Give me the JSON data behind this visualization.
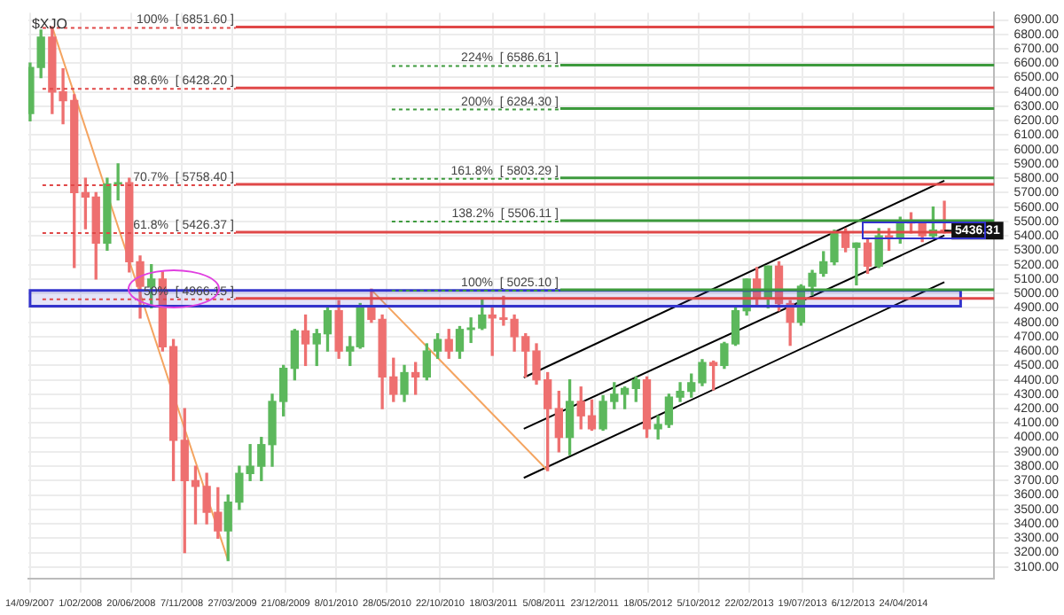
{
  "chart_data": {
    "type": "candlestick",
    "title": "$XJO",
    "x": [
      "2007-09-15",
      "2007-10-15",
      "2007-11-15",
      "2007-12-15",
      "2008-01-15",
      "2008-02-15",
      "2008-03-15",
      "2008-04-15",
      "2008-05-15",
      "2008-06-15",
      "2008-07-15",
      "2008-08-15",
      "2008-09-15",
      "2008-10-15",
      "2008-11-15",
      "2008-12-15",
      "2009-01-15",
      "2009-02-15",
      "2009-03-15",
      "2009-04-15",
      "2009-05-15",
      "2009-06-15",
      "2009-07-15",
      "2009-08-15",
      "2009-09-15",
      "2009-10-15",
      "2009-11-15",
      "2009-12-15",
      "2010-01-15",
      "2010-02-15",
      "2010-03-15",
      "2010-04-15",
      "2010-05-15",
      "2010-06-15",
      "2010-07-15",
      "2010-08-15",
      "2010-09-15",
      "2010-10-15",
      "2010-11-15",
      "2010-12-15",
      "2011-01-15",
      "2011-02-15",
      "2011-03-15",
      "2011-04-15",
      "2011-05-15",
      "2011-06-15",
      "2011-07-15",
      "2011-08-15",
      "2011-09-15",
      "2011-10-15",
      "2011-11-15",
      "2011-12-15",
      "2012-01-15",
      "2012-02-15",
      "2012-03-15",
      "2012-04-15",
      "2012-05-15",
      "2012-06-15",
      "2012-07-15",
      "2012-08-15",
      "2012-09-15",
      "2012-10-15",
      "2012-11-15",
      "2012-12-15",
      "2013-01-15",
      "2013-02-15",
      "2013-03-15",
      "2013-04-15",
      "2013-05-15",
      "2013-06-15",
      "2013-07-15",
      "2013-08-15",
      "2013-09-15",
      "2013-10-15",
      "2013-11-15",
      "2013-12-15",
      "2014-01-15",
      "2014-02-15",
      "2014-03-15",
      "2014-04-15",
      "2014-05-15",
      "2014-06-15",
      "2014-07-15",
      "2014-08-15"
    ],
    "ohlc": [
      [
        6250,
        6600,
        6200,
        6570
      ],
      [
        6570,
        6830,
        6500,
        6780
      ],
      [
        6780,
        6851.6,
        6250,
        6400
      ],
      [
        6400,
        6560,
        6180,
        6340
      ],
      [
        6340,
        6380,
        5180,
        5700
      ],
      [
        5700,
        5800,
        5450,
        5670
      ],
      [
        5670,
        5700,
        5100,
        5350
      ],
      [
        5350,
        5800,
        5300,
        5760
      ],
      [
        5760,
        5900,
        5650,
        5770
      ],
      [
        5770,
        5800,
        5150,
        5220
      ],
      [
        5220,
        5260,
        4830,
        5050
      ],
      [
        5050,
        5200,
        4900,
        5100
      ],
      [
        5100,
        5150,
        4600,
        4630
      ],
      [
        4630,
        4680,
        3700,
        3980
      ],
      [
        3980,
        4200,
        3200,
        3700
      ],
      [
        3700,
        3800,
        3400,
        3660
      ],
      [
        3660,
        3750,
        3400,
        3480
      ],
      [
        3480,
        3650,
        3300,
        3350
      ],
      [
        3350,
        3600,
        3145,
        3550
      ],
      [
        3550,
        3800,
        3500,
        3750
      ],
      [
        3750,
        3950,
        3700,
        3800
      ],
      [
        3800,
        4000,
        3700,
        3950
      ],
      [
        3950,
        4300,
        3800,
        4250
      ],
      [
        4250,
        4500,
        4150,
        4480
      ],
      [
        4480,
        4750,
        4400,
        4740
      ],
      [
        4740,
        4850,
        4500,
        4650
      ],
      [
        4650,
        4750,
        4500,
        4720
      ],
      [
        4720,
        4900,
        4600,
        4880
      ],
      [
        4880,
        4950,
        4550,
        4600
      ],
      [
        4600,
        4700,
        4500,
        4630
      ],
      [
        4630,
        4930,
        4620,
        4900
      ],
      [
        4900,
        5030,
        4800,
        4820
      ],
      [
        4820,
        4850,
        4200,
        4420
      ],
      [
        4420,
        4550,
        4250,
        4300
      ],
      [
        4300,
        4500,
        4250,
        4450
      ],
      [
        4450,
        4520,
        4300,
        4420
      ],
      [
        4420,
        4650,
        4400,
        4600
      ],
      [
        4600,
        4720,
        4550,
        4680
      ],
      [
        4680,
        4750,
        4550,
        4600
      ],
      [
        4600,
        4770,
        4550,
        4750
      ],
      [
        4750,
        4830,
        4660,
        4760
      ],
      [
        4760,
        4960,
        4750,
        4850
      ],
      [
        4850,
        4900,
        4570,
        4830
      ],
      [
        4830,
        4980,
        4780,
        4820
      ],
      [
        4820,
        4850,
        4600,
        4700
      ],
      [
        4700,
        4720,
        4420,
        4600
      ],
      [
        4600,
        4650,
        4370,
        4400
      ],
      [
        4400,
        4450,
        3770,
        4200
      ],
      [
        4200,
        4320,
        3900,
        4000
      ],
      [
        4000,
        4400,
        3880,
        4250
      ],
      [
        4250,
        4350,
        4060,
        4150
      ],
      [
        4150,
        4260,
        4050,
        4060
      ],
      [
        4060,
        4290,
        4050,
        4250
      ],
      [
        4250,
        4380,
        4200,
        4300
      ],
      [
        4300,
        4350,
        4200,
        4340
      ],
      [
        4340,
        4420,
        4250,
        4400
      ],
      [
        4400,
        4420,
        4000,
        4060
      ],
      [
        4060,
        4150,
        3990,
        4090
      ],
      [
        4090,
        4300,
        4070,
        4280
      ],
      [
        4280,
        4380,
        4250,
        4320
      ],
      [
        4320,
        4440,
        4280,
        4380
      ],
      [
        4380,
        4540,
        4360,
        4520
      ],
      [
        4520,
        4530,
        4330,
        4500
      ],
      [
        4500,
        4660,
        4480,
        4650
      ],
      [
        4650,
        4900,
        4640,
        4880
      ],
      [
        4880,
        5100,
        4850,
        5100
      ],
      [
        5100,
        5180,
        4920,
        4970
      ],
      [
        4970,
        5190,
        4900,
        5190
      ],
      [
        5190,
        5220,
        4880,
        4930
      ],
      [
        4930,
        4950,
        4640,
        4800
      ],
      [
        4800,
        5060,
        4780,
        5050
      ],
      [
        5050,
        5160,
        4990,
        5140
      ],
      [
        5140,
        5290,
        5120,
        5220
      ],
      [
        5220,
        5440,
        5200,
        5420
      ],
      [
        5420,
        5450,
        5290,
        5320
      ],
      [
        5320,
        5350,
        5060,
        5350
      ],
      [
        5350,
        5380,
        5140,
        5190
      ],
      [
        5190,
        5450,
        5180,
        5400
      ],
      [
        5400,
        5450,
        5300,
        5390
      ],
      [
        5390,
        5530,
        5350,
        5500
      ],
      [
        5500,
        5560,
        5420,
        5490
      ],
      [
        5490,
        5500,
        5360,
        5400
      ],
      [
        5400,
        5600,
        5380,
        5440
      ],
      [
        5440,
        5640,
        5420,
        5436.31
      ]
    ],
    "colors": [
      "#5cb85c",
      "#5cb85c",
      "#ee7070",
      "#ee7070",
      "#ee7070",
      "#ee7070",
      "#ee7070",
      "#5cb85c",
      "#5cb85c",
      "#ee7070",
      "#ee7070",
      "#5cb85c",
      "#ee7070",
      "#ee7070",
      "#ee7070",
      "#ee7070",
      "#ee7070",
      "#ee7070",
      "#5cb85c",
      "#5cb85c",
      "#5cb85c",
      "#5cb85c",
      "#5cb85c",
      "#5cb85c",
      "#5cb85c",
      "#ee7070",
      "#5cb85c",
      "#5cb85c",
      "#ee7070",
      "#5cb85c",
      "#5cb85c",
      "#ee7070",
      "#ee7070",
      "#ee7070",
      "#5cb85c",
      "#ee7070",
      "#5cb85c",
      "#5cb85c",
      "#ee7070",
      "#5cb85c",
      "#5cb85c",
      "#5cb85c",
      "#ee7070",
      "#ee7070",
      "#ee7070",
      "#ee7070",
      "#ee7070",
      "#ee7070",
      "#ee7070",
      "#5cb85c",
      "#ee7070",
      "#ee7070",
      "#5cb85c",
      "#5cb85c",
      "#5cb85c",
      "#5cb85c",
      "#ee7070",
      "#5cb85c",
      "#5cb85c",
      "#5cb85c",
      "#5cb85c",
      "#5cb85c",
      "#ee7070",
      "#5cb85c",
      "#5cb85c",
      "#5cb85c",
      "#ee7070",
      "#5cb85c",
      "#ee7070",
      "#ee7070",
      "#5cb85c",
      "#5cb85c",
      "#5cb85c",
      "#5cb85c",
      "#ee7070",
      "#5cb85c",
      "#ee7070",
      "#5cb85c",
      "#ee7070",
      "#5cb85c",
      "#ee7070",
      "#ee7070",
      "#5cb85c",
      "#ee7070"
    ],
    "series": [
      {
        "type": "line",
        "x": [
          "2007-11-15",
          "2009-03-15"
        ],
        "values": [
          6851.6,
          3145
        ],
        "color": "#f4a460"
      },
      {
        "type": "line",
        "x": [
          "2010-04-15",
          "2011-08-15"
        ],
        "values": [
          5025.1,
          3770
        ],
        "color": "#f4a460"
      },
      {
        "type": "line",
        "x": [
          "2011-06-10",
          "2014-08-15"
        ],
        "values": [
          4416,
          5784
        ],
        "color": "#000000"
      },
      {
        "type": "line",
        "x": [
          "2011-06-10",
          "2014-08-15"
        ],
        "values": [
          4060,
          5403
        ],
        "color": "#000000"
      },
      {
        "type": "line",
        "x": [
          "2011-06-10",
          "2014-08-15"
        ],
        "values": [
          3719,
          5079
        ],
        "color": "#000000"
      }
    ],
    "ref_lines": [
      {
        "axis": "y",
        "value": 6851.6,
        "label": "100%  [ 6851.60 ]",
        "color": "#e04848"
      },
      {
        "axis": "y",
        "value": 6428.2,
        "label": "88.6%  [ 6428.20 ]",
        "color": "#e04848"
      },
      {
        "axis": "y",
        "value": 5758.4,
        "label": "70.7%  [ 5758.40 ]",
        "color": "#e04848"
      },
      {
        "axis": "y",
        "value": 5426.37,
        "label": "61.8%  [ 5426.37 ]",
        "color": "#e04848"
      },
      {
        "axis": "y",
        "value": 4966.15,
        "label": "50%  [ 4966.15 ]",
        "color": "#e04848"
      },
      {
        "axis": "y",
        "value": 6586.61,
        "label": "224%  [ 6586.61 ]",
        "color": "#3d9a3d"
      },
      {
        "axis": "y",
        "value": 6284.3,
        "label": "200%  [ 6284.30 ]",
        "color": "#3d9a3d"
      },
      {
        "axis": "y",
        "value": 5803.29,
        "label": "161.8%  [ 5803.29 ]",
        "color": "#3d9a3d"
      },
      {
        "axis": "y",
        "value": 5506.11,
        "label": "138.2%  [ 5506.11 ]",
        "color": "#3d9a3d"
      },
      {
        "axis": "y",
        "value": 5025.1,
        "label": "100%  [ 5025.10 ]",
        "color": "#3d9a3d"
      }
    ],
    "bands": [
      {
        "axis": "y",
        "from": 4911,
        "to": 5021,
        "color": "#3333cc"
      }
    ],
    "annotations": [
      {
        "text": "5436.31",
        "x": "2014-08-15",
        "y": 5436.31
      }
    ],
    "xlim": [
      "2007-09-10",
      "2014-12-31"
    ],
    "xticks": [
      {
        "value": "2007-09-14",
        "label": "14/09/2007"
      },
      {
        "value": "2008-02-01",
        "label": "1/02/2008"
      },
      {
        "value": "2008-06-20",
        "label": "20/06/2008"
      },
      {
        "value": "2008-11-07",
        "label": "7/11/2008"
      },
      {
        "value": "2009-03-27",
        "label": "27/03/2009"
      },
      {
        "value": "2009-08-21",
        "label": "21/08/2009"
      },
      {
        "value": "2010-01-08",
        "label": "8/01/2010"
      },
      {
        "value": "2010-05-28",
        "label": "28/05/2010"
      },
      {
        "value": "2010-10-22",
        "label": "22/10/2010"
      },
      {
        "value": "2011-03-18",
        "label": "18/03/2011"
      },
      {
        "value": "2011-08-05",
        "label": "5/08/2011"
      },
      {
        "value": "2011-12-23",
        "label": "23/12/2011"
      },
      {
        "value": "2012-05-18",
        "label": "18/05/2012"
      },
      {
        "value": "2012-10-05",
        "label": "5/10/2012"
      },
      {
        "value": "2013-02-22",
        "label": "22/02/2013"
      },
      {
        "value": "2013-07-19",
        "label": "19/07/2013"
      },
      {
        "value": "2013-12-06",
        "label": "6/12/2013"
      },
      {
        "value": "2014-04-24",
        "label": "24/04/2014"
      }
    ],
    "ylim": [
      3020,
      6950
    ],
    "yticks": [
      {
        "value": 3100,
        "label": "3100.00"
      },
      {
        "value": 3200,
        "label": "3200.00"
      },
      {
        "value": 3300,
        "label": "3300.00"
      },
      {
        "value": 3400,
        "label": "3400.00"
      },
      {
        "value": 3500,
        "label": "3500.00"
      },
      {
        "value": 3600,
        "label": "3600.00"
      },
      {
        "value": 3700,
        "label": "3700.00"
      },
      {
        "value": 3800,
        "label": "3800.00"
      },
      {
        "value": 3900,
        "label": "3900.00"
      },
      {
        "value": 4000,
        "label": "4000.00"
      },
      {
        "value": 4100,
        "label": "4100.00"
      },
      {
        "value": 4200,
        "label": "4200.00"
      },
      {
        "value": 4300,
        "label": "4300.00"
      },
      {
        "value": 4400,
        "label": "4400.00"
      },
      {
        "value": 4500,
        "label": "4500.00"
      },
      {
        "value": 4600,
        "label": "4600.00"
      },
      {
        "value": 4700,
        "label": "4700.00"
      },
      {
        "value": 4800,
        "label": "4800.00"
      },
      {
        "value": 4900,
        "label": "4900.00"
      },
      {
        "value": 5000,
        "label": "5000.00"
      },
      {
        "value": 5100,
        "label": "5100.00"
      },
      {
        "value": 5200,
        "label": "5200.00"
      },
      {
        "value": 5300,
        "label": "5300.00"
      },
      {
        "value": 5400,
        "label": "5400.00"
      },
      {
        "value": 5500,
        "label": "5500.00"
      },
      {
        "value": 5600,
        "label": "5600.00"
      },
      {
        "value": 5700,
        "label": "5700.00"
      },
      {
        "value": 5800,
        "label": "5800.00"
      },
      {
        "value": 5900,
        "label": "5900.00"
      },
      {
        "value": 6000,
        "label": "6000.00"
      },
      {
        "value": 6100,
        "label": "6100.00"
      },
      {
        "value": 6200,
        "label": "6200.00"
      },
      {
        "value": 6300,
        "label": "6300.00"
      },
      {
        "value": 6400,
        "label": "6400.00"
      },
      {
        "value": 6500,
        "label": "6500.00"
      },
      {
        "value": 6600,
        "label": "6600.00"
      },
      {
        "value": 6700,
        "label": "6700.00"
      },
      {
        "value": 6800,
        "label": "6800.00"
      },
      {
        "value": 6900,
        "label": "6900.00"
      }
    ],
    "grid": true
  }
}
